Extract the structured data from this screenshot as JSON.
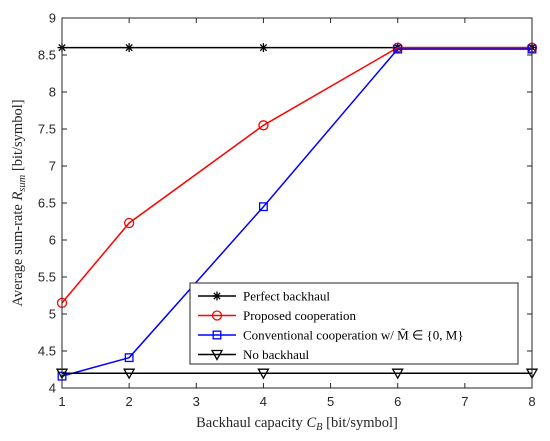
{
  "chart_data": {
    "type": "line",
    "xlabel": "Backhaul capacity C_B [bit/symbol]",
    "ylabel": "Average sum-rate R_sum [bit/symbol]",
    "xlim": [
      1,
      8
    ],
    "ylim": [
      4,
      9
    ],
    "xticks": [
      1,
      2,
      3,
      4,
      5,
      6,
      7,
      8
    ],
    "yticks": [
      4,
      4.5,
      5,
      5.5,
      6,
      6.5,
      7,
      7.5,
      8,
      8.5,
      9
    ],
    "grid": false,
    "legend_position": "bottom-right",
    "series": [
      {
        "name": "Perfect backhaul",
        "color": "#000000",
        "marker": "asterisk",
        "x": [
          1,
          2,
          4,
          6,
          8
        ],
        "y": [
          8.6,
          8.6,
          8.6,
          8.6,
          8.6
        ]
      },
      {
        "name": "Proposed cooperation",
        "color": "#ff0000",
        "marker": "circle",
        "x": [
          1,
          2,
          4,
          6,
          8
        ],
        "y": [
          5.15,
          6.23,
          7.55,
          8.6,
          8.6
        ]
      },
      {
        "name": "Conventional cooperation w/ M̃ ∈ {0, M}",
        "color": "#0000ff",
        "marker": "square",
        "x": [
          1,
          2,
          4,
          6,
          8
        ],
        "y": [
          4.16,
          4.41,
          6.45,
          8.58,
          8.58
        ]
      },
      {
        "name": "No backhaul",
        "color": "#000000",
        "marker": "triangle-down",
        "x": [
          1,
          2,
          4,
          6,
          8
        ],
        "y": [
          4.2,
          4.2,
          4.2,
          4.2,
          4.2
        ]
      }
    ]
  }
}
